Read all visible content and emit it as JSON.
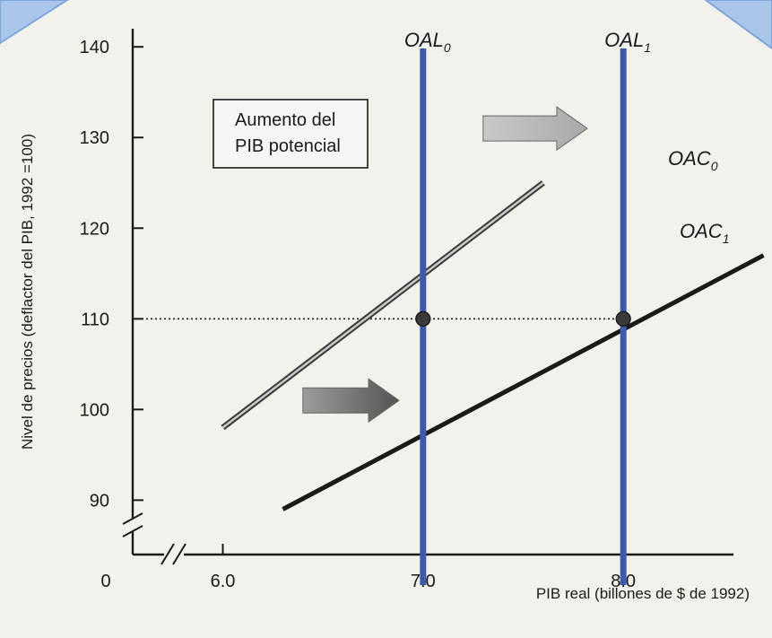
{
  "chart_data": {
    "type": "line",
    "xlabel": "PIB real (billones de $ de 1992)",
    "ylabel": "Nivel de precios (deflactor del PIB, 1992 =100)",
    "x_ticks": [
      {
        "value": 0,
        "label": "0"
      },
      {
        "value": 6.0,
        "label": "6.0"
      },
      {
        "value": 7.0,
        "label": "7.0"
      },
      {
        "value": 8.0,
        "label": "8.0"
      }
    ],
    "y_ticks": [
      {
        "value": 90,
        "label": "90"
      },
      {
        "value": 100,
        "label": "100"
      },
      {
        "value": 110,
        "label": "110"
      },
      {
        "value": 120,
        "label": "120"
      },
      {
        "value": 130,
        "label": "130"
      },
      {
        "value": 140,
        "label": "140"
      }
    ],
    "xlim": [
      5.55,
      8.55
    ],
    "ylim": [
      84,
      142
    ],
    "axis_breaks": true,
    "series": [
      {
        "name": "OAC0",
        "label_main": "OAC",
        "label_sub": "0",
        "x": [
          6.0,
          7.6
        ],
        "y": [
          98,
          125
        ],
        "color": "#777777",
        "style": "double"
      },
      {
        "name": "OAC1",
        "label_main": "OAC",
        "label_sub": "1",
        "x": [
          6.3,
          8.7
        ],
        "y": [
          89,
          117
        ],
        "color": "#1a1a1a",
        "style": "solid"
      }
    ],
    "vertical_lines": [
      {
        "name": "OAL0",
        "label_main": "OAL",
        "label_sub": "0",
        "x": 7.0,
        "color": "#3d5ba8"
      },
      {
        "name": "OAL1",
        "label_main": "OAL",
        "label_sub": "1",
        "x": 8.0,
        "color": "#3d5ba8"
      }
    ],
    "reference_line": {
      "y": 110,
      "style": "dotted"
    },
    "points": [
      {
        "x": 7.0,
        "y": 110
      },
      {
        "x": 8.0,
        "y": 110
      }
    ],
    "annotation": {
      "line1": "Aumento del",
      "line2": "PIB potencial"
    },
    "arrows": [
      {
        "from": [
          7.3,
          131
        ],
        "to": [
          7.82,
          131
        ],
        "color": "#a8a8a8"
      },
      {
        "from": [
          6.4,
          101
        ],
        "to": [
          6.88,
          101
        ],
        "color": "#555555"
      }
    ]
  }
}
